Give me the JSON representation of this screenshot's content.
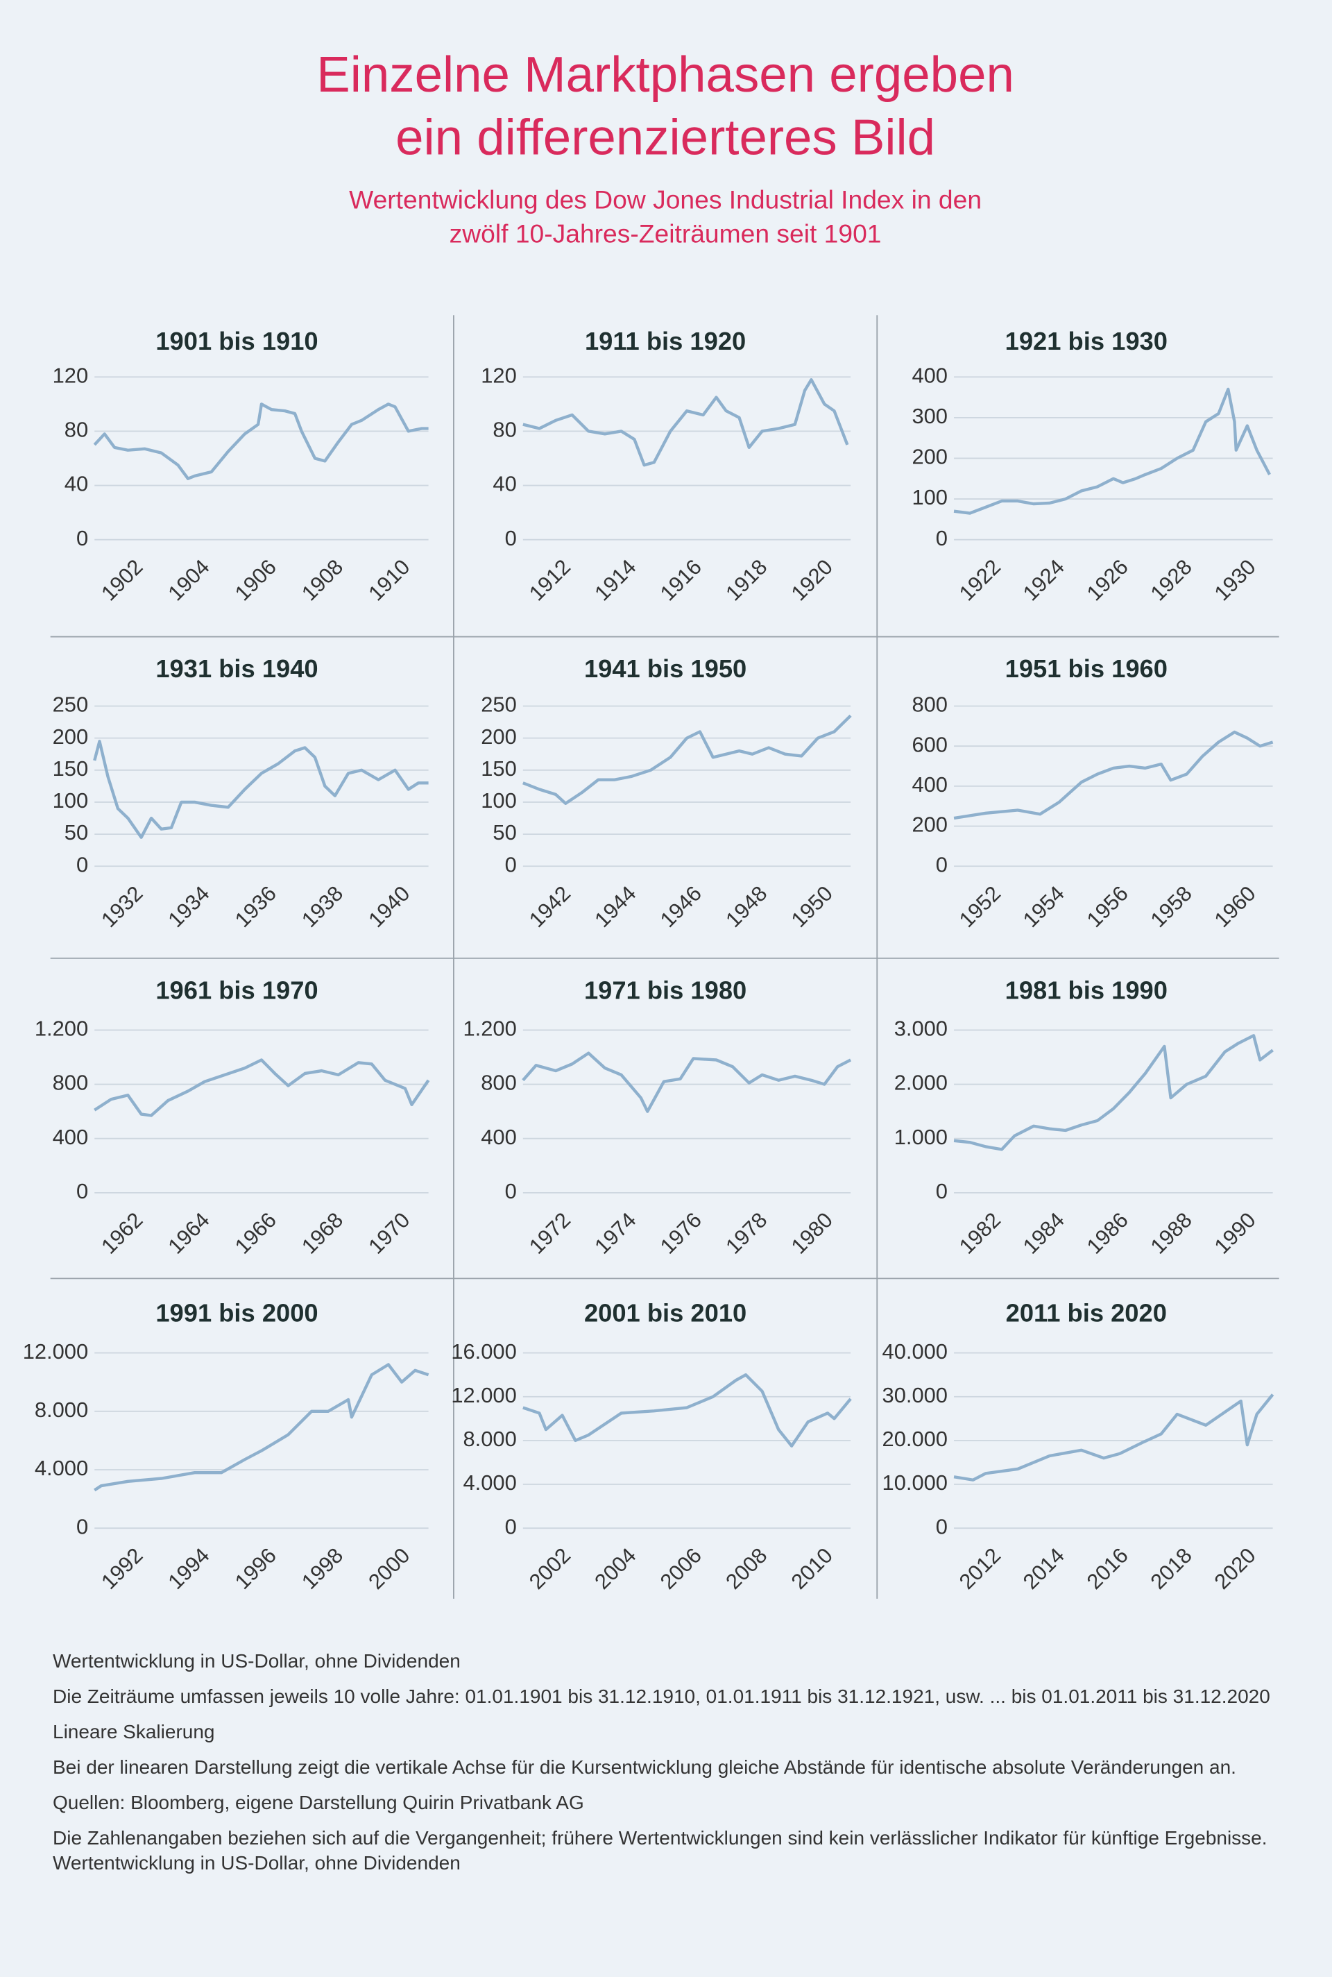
{
  "title": [
    "Einzelne Marktphasen ergeben",
    "ein differenzierteres Bild"
  ],
  "subtitle": [
    "Wertentwicklung des Dow Jones Industrial Index in den",
    "zwölf 10-Jahres-Zeiträumen seit 1901"
  ],
  "notes": [
    "Wertentwicklung in US-Dollar, ohne Dividenden",
    "Die Zeiträume umfassen jeweils 10 volle Jahre: 01.01.1901 bis 31.12.1910, 01.01.1911 bis 31.12.1921, usw. ... bis 01.01.2011 bis 31.12.2020",
    "Lineare Skalierung",
    "Bei der linearen Darstellung zeigt die vertikale Achse für die Kursentwicklung gleiche Abstände für identische absolute Veränderungen an.",
    "Quellen: Bloomberg, eigene Darstellung Quirin Privatbank AG",
    "Die Zahlenangaben beziehen sich auf die Vergangenheit; frühere Wertentwicklungen sind kein verlässlicher Indikator für künftige Ergebnisse. Wertentwicklung in US-Dollar, ohne Dividenden"
  ],
  "chart_data": [
    {
      "type": "line",
      "title": "1901 bis 1910",
      "color": "#8eb0cd",
      "grid": true,
      "x": [
        1901,
        1901.3,
        1901.6,
        1902,
        1902.5,
        1903,
        1903.5,
        1903.8,
        1904,
        1904.5,
        1905,
        1905.5,
        1905.9,
        1906,
        1906.3,
        1906.7,
        1907,
        1907.2,
        1907.6,
        1907.9,
        1908.3,
        1908.7,
        1909,
        1909.5,
        1909.8,
        1910,
        1910.4,
        1910.8,
        1911
      ],
      "values": [
        70,
        78,
        68,
        66,
        67,
        64,
        55,
        45,
        47,
        50,
        65,
        78,
        85,
        100,
        96,
        95,
        93,
        80,
        60,
        58,
        72,
        85,
        88,
        96,
        100,
        98,
        80,
        82,
        82
      ],
      "xlim": [
        1901,
        1911
      ],
      "xticks": [
        1902,
        1904,
        1906,
        1908,
        1910
      ],
      "ylim": [
        0,
        120
      ],
      "yticks": [
        0,
        40,
        80,
        120
      ]
    },
    {
      "type": "line",
      "title": "1911 bis 1920",
      "color": "#8eb0cd",
      "grid": true,
      "x": [
        1911,
        1911.5,
        1912,
        1912.5,
        1913,
        1913.5,
        1914,
        1914.4,
        1914.7,
        1915,
        1915.5,
        1916,
        1916.5,
        1916.9,
        1917.2,
        1917.6,
        1917.9,
        1918.3,
        1918.8,
        1919.3,
        1919.6,
        1919.8,
        1920.2,
        1920.5,
        1920.9
      ],
      "values": [
        85,
        82,
        88,
        92,
        80,
        78,
        80,
        74,
        55,
        57,
        80,
        95,
        92,
        105,
        95,
        90,
        68,
        80,
        82,
        85,
        110,
        118,
        100,
        95,
        70
      ],
      "xlim": [
        1911,
        1921
      ],
      "xticks": [
        1912,
        1914,
        1916,
        1918,
        1920
      ],
      "ylim": [
        0,
        120
      ],
      "yticks": [
        0,
        40,
        80,
        120
      ]
    },
    {
      "type": "line",
      "title": "1921 bis 1930",
      "color": "#8eb0cd",
      "grid": true,
      "x": [
        1921,
        1921.5,
        1922,
        1922.5,
        1923,
        1923.5,
        1924,
        1924.5,
        1925,
        1925.5,
        1926,
        1926.3,
        1926.7,
        1927,
        1927.5,
        1928,
        1928.5,
        1928.9,
        1929.3,
        1929.6,
        1929.8,
        1929.85,
        1930.2,
        1930.5,
        1930.9
      ],
      "values": [
        70,
        65,
        80,
        95,
        95,
        88,
        90,
        100,
        120,
        130,
        150,
        140,
        150,
        160,
        175,
        200,
        220,
        290,
        310,
        370,
        290,
        220,
        280,
        220,
        160
      ],
      "xlim": [
        1921,
        1931
      ],
      "xticks": [
        1922,
        1924,
        1926,
        1928,
        1930
      ],
      "ylim": [
        0,
        400
      ],
      "yticks": [
        0,
        100,
        200,
        300,
        400
      ]
    },
    {
      "type": "line",
      "title": "1931 bis 1940",
      "color": "#8eb0cd",
      "grid": true,
      "x": [
        1931,
        1931.15,
        1931.4,
        1931.7,
        1932,
        1932.4,
        1932.7,
        1933,
        1933.3,
        1933.6,
        1934,
        1934.5,
        1935,
        1935.5,
        1936,
        1936.5,
        1937,
        1937.3,
        1937.6,
        1937.9,
        1938.2,
        1938.6,
        1939,
        1939.5,
        1940,
        1940.4,
        1940.7,
        1941
      ],
      "values": [
        165,
        195,
        140,
        90,
        75,
        45,
        75,
        58,
        60,
        100,
        100,
        95,
        92,
        120,
        145,
        160,
        180,
        185,
        170,
        125,
        110,
        145,
        150,
        135,
        150,
        120,
        130,
        130
      ],
      "xlim": [
        1931,
        1941
      ],
      "xticks": [
        1932,
        1934,
        1936,
        1938,
        1940
      ],
      "ylim": [
        0,
        250
      ],
      "yticks": [
        0,
        50,
        100,
        150,
        200,
        250
      ]
    },
    {
      "type": "line",
      "title": "1941 bis 1950",
      "color": "#8eb0cd",
      "grid": true,
      "x": [
        1941,
        1941.5,
        1942,
        1942.3,
        1942.8,
        1943.3,
        1943.8,
        1944.3,
        1944.9,
        1945.5,
        1946,
        1946.4,
        1946.8,
        1947.2,
        1947.6,
        1948,
        1948.5,
        1949,
        1949.5,
        1950,
        1950.5,
        1951
      ],
      "values": [
        130,
        120,
        112,
        98,
        115,
        135,
        135,
        140,
        150,
        170,
        200,
        210,
        170,
        175,
        180,
        175,
        185,
        175,
        172,
        200,
        210,
        235
      ],
      "xlim": [
        1941,
        1951
      ],
      "xticks": [
        1942,
        1944,
        1946,
        1948,
        1950
      ],
      "ylim": [
        0,
        250
      ],
      "yticks": [
        0,
        50,
        100,
        150,
        200,
        250
      ]
    },
    {
      "type": "line",
      "title": "1951 bis 1960",
      "color": "#8eb0cd",
      "grid": true,
      "x": [
        1951,
        1952,
        1953,
        1953.7,
        1954.3,
        1955,
        1955.5,
        1956,
        1956.5,
        1957,
        1957.5,
        1957.8,
        1958.3,
        1958.8,
        1959.3,
        1959.8,
        1960.2,
        1960.6,
        1961
      ],
      "values": [
        240,
        265,
        280,
        260,
        320,
        420,
        460,
        490,
        500,
        490,
        510,
        430,
        460,
        550,
        620,
        670,
        640,
        600,
        620
      ],
      "xlim": [
        1951,
        1961
      ],
      "xticks": [
        1952,
        1954,
        1956,
        1958,
        1960
      ],
      "ylim": [
        0,
        800
      ],
      "yticks": [
        0,
        200,
        400,
        600,
        800
      ]
    },
    {
      "type": "line",
      "title": "1961 bis 1970",
      "color": "#8eb0cd",
      "grid": true,
      "x": [
        1961,
        1961.5,
        1962,
        1962.4,
        1962.7,
        1963.2,
        1963.8,
        1964.3,
        1964.9,
        1965.5,
        1966,
        1966.4,
        1966.8,
        1967.3,
        1967.8,
        1968.3,
        1968.9,
        1969.3,
        1969.7,
        1970.3,
        1970.5,
        1971
      ],
      "values": [
        610,
        690,
        720,
        580,
        570,
        680,
        750,
        820,
        870,
        920,
        980,
        880,
        790,
        880,
        900,
        870,
        960,
        950,
        830,
        770,
        650,
        830
      ],
      "xlim": [
        1961,
        1971
      ],
      "xticks": [
        1962,
        1964,
        1966,
        1968,
        1970
      ],
      "ylim": [
        0,
        1200
      ],
      "yticks": [
        0,
        400,
        800,
        {
          "value": 1200,
          "label": "1.200"
        }
      ]
    },
    {
      "type": "line",
      "title": "1971 bis 1980",
      "color": "#8eb0cd",
      "grid": true,
      "x": [
        1971,
        1971.4,
        1972,
        1972.5,
        1973,
        1973.5,
        1974,
        1974.6,
        1974.8,
        1975.3,
        1975.8,
        1976.2,
        1976.9,
        1977.4,
        1977.9,
        1978.3,
        1978.8,
        1979.3,
        1979.8,
        1980.2,
        1980.6,
        1981
      ],
      "values": [
        830,
        940,
        900,
        950,
        1030,
        920,
        870,
        700,
        600,
        820,
        840,
        990,
        980,
        930,
        810,
        870,
        830,
        860,
        830,
        800,
        930,
        980
      ],
      "xlim": [
        1971,
        1981
      ],
      "xticks": [
        1972,
        1974,
        1976,
        1978,
        1980
      ],
      "ylim": [
        0,
        1200
      ],
      "yticks": [
        0,
        400,
        800,
        {
          "value": 1200,
          "label": "1.200"
        }
      ]
    },
    {
      "type": "line",
      "title": "1981 bis 1990",
      "color": "#8eb0cd",
      "grid": true,
      "x": [
        1981,
        1981.5,
        1982,
        1982.5,
        1982.9,
        1983.5,
        1984,
        1984.5,
        1985,
        1985.5,
        1986,
        1986.5,
        1987,
        1987.6,
        1987.8,
        1988.3,
        1988.9,
        1989.5,
        1989.9,
        1990.4,
        1990.6,
        1991
      ],
      "values": [
        960,
        930,
        850,
        800,
        1050,
        1230,
        1180,
        1150,
        1250,
        1330,
        1550,
        1850,
        2200,
        2700,
        1750,
        2000,
        2150,
        2600,
        2750,
        2900,
        2450,
        2630
      ],
      "xlim": [
        1981,
        1991
      ],
      "xticks": [
        1982,
        1984,
        1986,
        1988,
        1990
      ],
      "ylim": [
        0,
        3000
      ],
      "yticks": [
        0,
        {
          "value": 1000,
          "label": "1.000"
        },
        {
          "value": 2000,
          "label": "2.000"
        },
        {
          "value": 3000,
          "label": "3.000"
        }
      ]
    },
    {
      "type": "line",
      "title": "1991 bis 2000",
      "color": "#8eb0cd",
      "grid": true,
      "x": [
        1991,
        1991.2,
        1992,
        1993,
        1994,
        1994.8,
        1995.5,
        1996,
        1996.8,
        1997.5,
        1998,
        1998.6,
        1998.7,
        1999.3,
        1999.8,
        2000.2,
        2000.6,
        2001
      ],
      "values": [
        2600,
        2900,
        3200,
        3400,
        3800,
        3800,
        4700,
        5300,
        6400,
        8000,
        8000,
        8800,
        7600,
        10500,
        11200,
        10000,
        10800,
        10500
      ],
      "xlim": [
        1991,
        2001
      ],
      "xticks": [
        1992,
        1994,
        1996,
        1998,
        2000
      ],
      "ylim": [
        0,
        12000
      ],
      "yticks": [
        0,
        {
          "value": 4000,
          "label": "4.000"
        },
        {
          "value": 8000,
          "label": "8.000"
        },
        {
          "value": 12000,
          "label": "12.000"
        }
      ]
    },
    {
      "type": "line",
      "title": "2001 bis 2010",
      "color": "#8eb0cd",
      "grid": true,
      "x": [
        2001,
        2001.5,
        2001.7,
        2002.2,
        2002.6,
        2003,
        2003.5,
        2004,
        2005,
        2006,
        2006.8,
        2007.5,
        2007.8,
        2008.3,
        2008.8,
        2009.2,
        2009.7,
        2010.3,
        2010.5,
        2011
      ],
      "values": [
        11000,
        10500,
        9000,
        10300,
        8000,
        8500,
        9500,
        10500,
        10700,
        11000,
        12000,
        13500,
        14000,
        12500,
        9000,
        7500,
        9700,
        10500,
        10000,
        11800
      ],
      "xlim": [
        2001,
        2011
      ],
      "xticks": [
        2002,
        2004,
        2006,
        2008,
        2010
      ],
      "ylim": [
        0,
        16000
      ],
      "yticks": [
        0,
        {
          "value": 4000,
          "label": "4.000"
        },
        {
          "value": 8000,
          "label": "8.000"
        },
        {
          "value": 12000,
          "label": "12.000"
        },
        {
          "value": 16000,
          "label": "16.000"
        }
      ]
    },
    {
      "type": "line",
      "title": "2011 bis 2020",
      "color": "#8eb0cd",
      "grid": true,
      "x": [
        2011,
        2011.6,
        2012,
        2013,
        2014,
        2015,
        2015.7,
        2016.2,
        2016.9,
        2017.5,
        2018,
        2018.9,
        2019.4,
        2020,
        2020.2,
        2020.5,
        2021
      ],
      "values": [
        11700,
        11000,
        12500,
        13500,
        16500,
        17800,
        16000,
        17000,
        19500,
        21500,
        26000,
        23500,
        26000,
        29000,
        19000,
        26000,
        30500
      ],
      "xlim": [
        2011,
        2021
      ],
      "xticks": [
        2012,
        2014,
        2016,
        2018,
        2020
      ],
      "ylim": [
        0,
        40000
      ],
      "yticks": [
        0,
        {
          "value": 10000,
          "label": "10.000"
        },
        {
          "value": 20000,
          "label": "20.000"
        },
        {
          "value": 30000,
          "label": "30.000"
        },
        {
          "value": 40000,
          "label": "40.000"
        }
      ]
    }
  ]
}
